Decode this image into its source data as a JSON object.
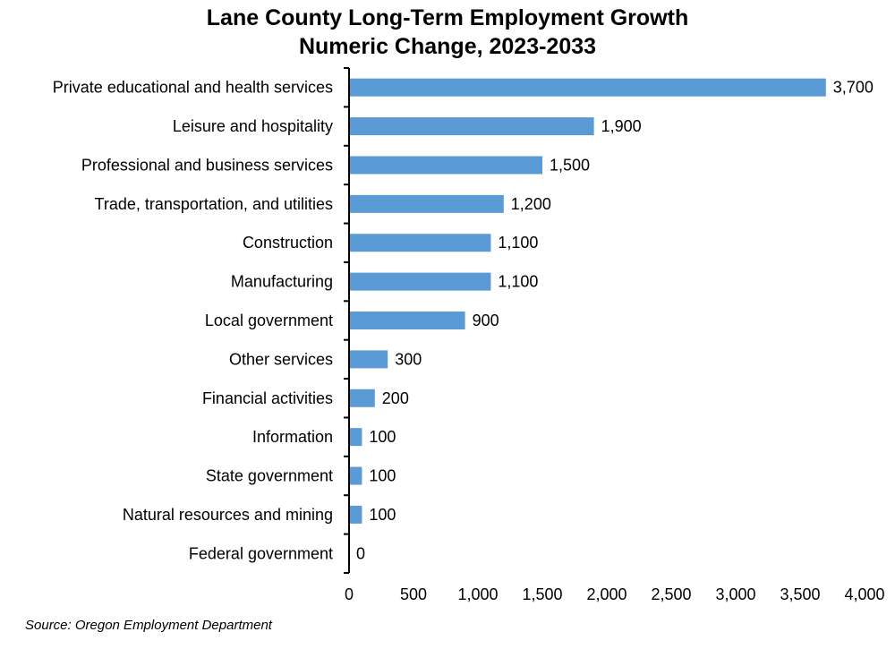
{
  "chart_data": {
    "type": "bar",
    "orientation": "horizontal",
    "title": "Lane County Long-Term Employment Growth",
    "subtitle": "Numeric Change, 2023-2033",
    "categories": [
      "Private educational and health services",
      "Leisure and hospitality",
      "Professional and business services",
      "Trade, transportation, and utilities",
      "Construction",
      "Manufacturing",
      "Local government",
      "Other services",
      "Financial activities",
      "Information",
      "State government",
      "Natural resources and mining",
      "Federal government"
    ],
    "values": [
      3700,
      1900,
      1500,
      1200,
      1100,
      1100,
      900,
      300,
      200,
      100,
      100,
      100,
      0
    ],
    "data_labels": [
      "3,700",
      "1,900",
      "1,500",
      "1,200",
      "1,100",
      "1,100",
      "900",
      "300",
      "200",
      "100",
      "100",
      "100",
      "0"
    ],
    "xlim": [
      0,
      4000
    ],
    "xticks": [
      0,
      500,
      1000,
      1500,
      2000,
      2500,
      3000,
      3500,
      4000
    ],
    "xtick_labels": [
      "0",
      "500",
      "1,000",
      "1,500",
      "2,000",
      "2,500",
      "3,000",
      "3,500",
      "4,000"
    ],
    "xlabel": "",
    "ylabel": "",
    "grid": false,
    "bar_color": "#5B9BD5"
  },
  "source": "Source: Oregon Employment Department"
}
